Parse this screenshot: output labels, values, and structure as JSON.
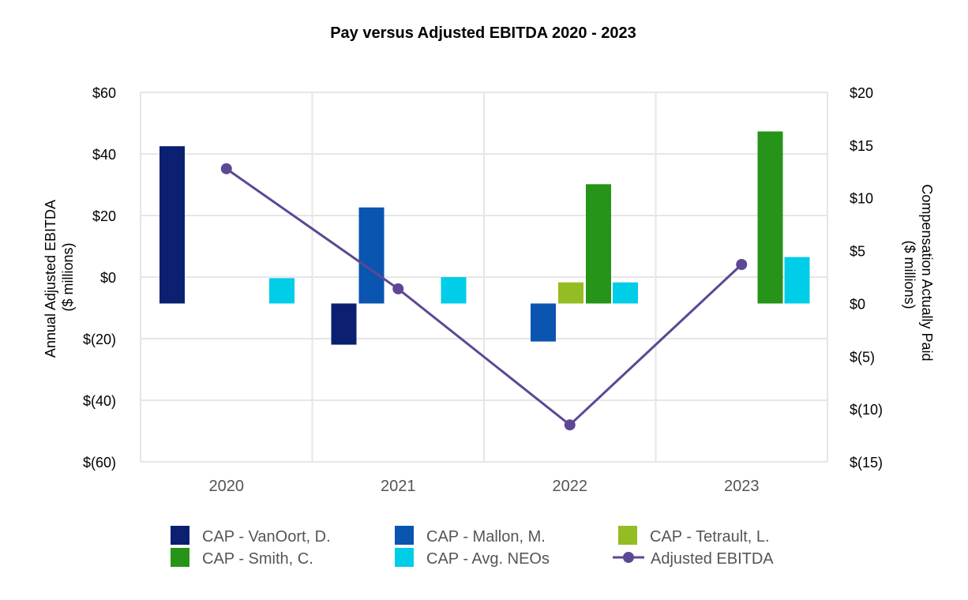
{
  "chart_data": {
    "type": "bar",
    "title": "Pay versus Adjusted EBITDA 2020 - 2023",
    "categories": [
      "2020",
      "2021",
      "2022",
      "2023"
    ],
    "y_left": {
      "label_lines": [
        "Annual Adjusted EBITDA",
        "($ millions)"
      ],
      "range": [
        -60,
        60
      ],
      "ticks": [
        60,
        40,
        20,
        0,
        -20,
        -40,
        -60
      ],
      "tick_labels": [
        "$60",
        "$40",
        "$20",
        "$0",
        "$(20)",
        "$(40)",
        "$(60)"
      ]
    },
    "y_right": {
      "label_lines": [
        "Compensation Actually Paid",
        "($ millions)"
      ],
      "range": [
        -15,
        20
      ],
      "ticks": [
        20,
        15,
        10,
        5,
        0,
        -5,
        -10,
        -15
      ],
      "tick_labels": [
        "$20",
        "$15",
        "$10",
        "$5",
        "$0",
        "$(5)",
        "$(10)",
        "$(15)"
      ]
    },
    "grid": true,
    "legend_position": "bottom",
    "bar_series": [
      {
        "name": "CAP - VanOort, D.",
        "color": "#0b2070",
        "values": [
          14.9,
          -3.9,
          null,
          null
        ]
      },
      {
        "name": "CAP - Mallon, M.",
        "color": "#0a55b0",
        "values": [
          null,
          9.1,
          -3.6,
          null
        ]
      },
      {
        "name": "CAP - Tetrault, L.",
        "color": "#93bd22",
        "values": [
          null,
          null,
          2.0,
          null
        ]
      },
      {
        "name": "CAP - Smith, C.",
        "color": "#269418",
        "values": [
          null,
          null,
          11.3,
          16.3
        ]
      },
      {
        "name": "CAP - Avg. NEOs",
        "color": "#00cde8",
        "values": [
          2.4,
          2.5,
          2.0,
          4.4
        ]
      }
    ],
    "line_series": {
      "name": "Adjusted EBITDA",
      "color": "#5e4794",
      "axis": "left",
      "values": [
        35.2,
        -3.8,
        -48.0,
        4.1
      ]
    }
  }
}
